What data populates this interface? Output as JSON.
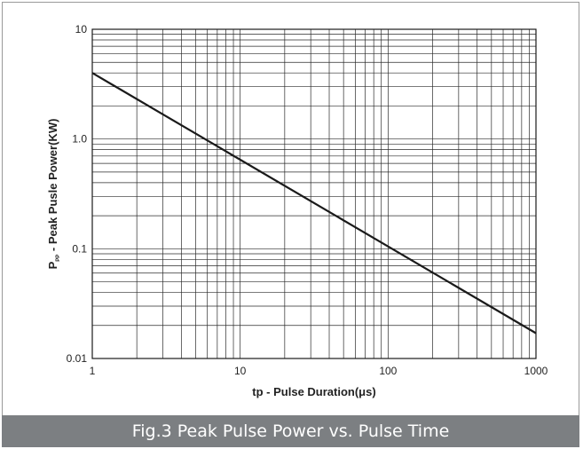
{
  "caption": "Fig.3 Peak Pulse Power vs. Pulse Time",
  "chart_data": {
    "type": "line",
    "x_scale": "log",
    "y_scale": "log",
    "xlim": [
      1,
      1000
    ],
    "ylim": [
      0.01,
      10
    ],
    "xlabel": "tp - Pulse Duration(μs)",
    "ylabel_main": "P",
    "ylabel_sub": "PP",
    "ylabel_rest": " - Peak Pusle Power(KW)",
    "x_ticks": [
      {
        "value": 1,
        "label": "1"
      },
      {
        "value": 10,
        "label": "10"
      },
      {
        "value": 100,
        "label": "100"
      },
      {
        "value": 1000,
        "label": "1000"
      }
    ],
    "y_ticks": [
      {
        "value": 0.01,
        "label": "0.01"
      },
      {
        "value": 0.1,
        "label": "0.1"
      },
      {
        "value": 1,
        "label": "1.0"
      },
      {
        "value": 10,
        "label": "10"
      }
    ],
    "grid": true,
    "series": [
      {
        "x": [
          1,
          1000
        ],
        "y": [
          4.0,
          0.017
        ],
        "color": "#1a1a1a"
      }
    ]
  }
}
